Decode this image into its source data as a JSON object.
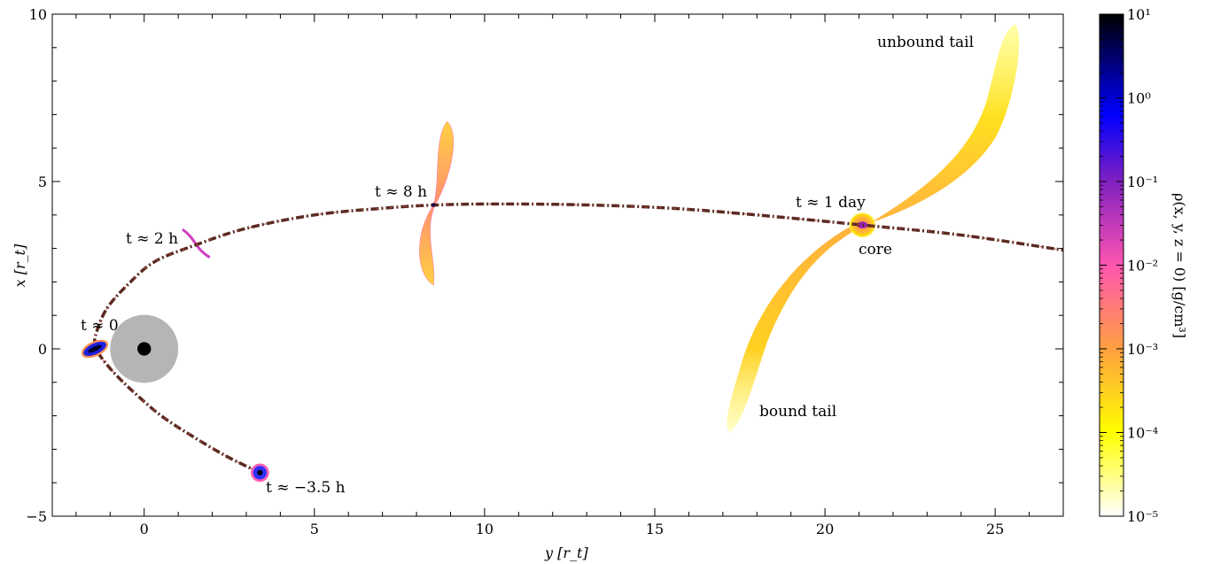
{
  "chart_data": {
    "type": "scatter",
    "xlabel": "y [r_t]",
    "ylabel": "x [r_t]",
    "xlim": [
      -2.7,
      27
    ],
    "ylim": [
      -5,
      10
    ],
    "x_ticks": [
      "0",
      "5",
      "10",
      "15",
      "20",
      "25"
    ],
    "x_tick_values": [
      0,
      5,
      10,
      15,
      20,
      25
    ],
    "y_ticks": [
      "−5",
      "0",
      "5",
      "10"
    ],
    "y_tick_values": [
      -5,
      0,
      5,
      10
    ],
    "grid": false,
    "orbit": {
      "color": "#5c2a22",
      "dash_color": "#b0504a",
      "points": [
        [
          3.4,
          -3.7
        ],
        [
          2.4,
          -3.2
        ],
        [
          1.4,
          -2.6
        ],
        [
          0.5,
          -2.0
        ],
        [
          -0.3,
          -1.3
        ],
        [
          -0.9,
          -0.7
        ],
        [
          -1.3,
          -0.2
        ],
        [
          -1.45,
          0.1
        ],
        [
          -1.4,
          0.5
        ],
        [
          -1.1,
          1.2
        ],
        [
          -0.5,
          1.9
        ],
        [
          0.3,
          2.6
        ],
        [
          1.5,
          3.1
        ],
        [
          3.0,
          3.6
        ],
        [
          5.0,
          4.0
        ],
        [
          7.0,
          4.2
        ],
        [
          8.6,
          4.3
        ],
        [
          10.5,
          4.33
        ],
        [
          13.0,
          4.3
        ],
        [
          15.5,
          4.2
        ],
        [
          18.0,
          4.0
        ],
        [
          21.1,
          3.7
        ],
        [
          24.0,
          3.4
        ],
        [
          27.0,
          2.95
        ]
      ]
    },
    "black_hole": {
      "x": 0,
      "y": 0,
      "core_radius": 0.2,
      "halo_radius": 1.0
    },
    "snapshots": [
      {
        "label": "t ≈ −3.5 h",
        "x": 3.4,
        "y": -3.7
      },
      {
        "label": "t ≈ 0",
        "x": -1.45,
        "y": 0.0
      },
      {
        "label": "t ≈ 2 h",
        "x": 1.5,
        "y": 3.1
      },
      {
        "label": "t ≈ 8 h",
        "x": 8.5,
        "y": 4.3
      },
      {
        "label": "t ≈ 1 day",
        "x": 21.1,
        "y": 3.7
      }
    ],
    "annotations": {
      "unbound_tail": "unbound tail",
      "bound_tail": "bound tail",
      "core": "core"
    },
    "colorbar": {
      "label": "ρ(x, y, z = 0) [g/cm³]",
      "scale": "log",
      "range": [
        1e-05,
        10
      ],
      "ticks": [
        "10⁻⁵",
        "10⁻⁴",
        "10⁻³",
        "10⁻²",
        "10⁻¹",
        "10⁰",
        "10¹"
      ],
      "tick_exponents": [
        -5,
        -4,
        -3,
        -2,
        -1,
        0,
        1
      ],
      "colors": [
        "#ffffff",
        "#ffff00",
        "#ffa040",
        "#ff55b0",
        "#8020c0",
        "#0000ff",
        "#000000"
      ]
    }
  },
  "text": {
    "x_axis_label": "y [r_t]",
    "y_axis_label": "x [r_t]",
    "t_m35h": "t ≈ −3.5 h",
    "t_0": "t ≈ 0",
    "t_2h": "t ≈ 2 h",
    "t_8h": "t ≈ 8 h",
    "t_1day": "t ≈ 1 day",
    "unbound_tail": "unbound tail",
    "bound_tail": "bound tail",
    "core": "core",
    "colorbar_label": "ρ(x, y, z = 0) [g/cm³]"
  }
}
